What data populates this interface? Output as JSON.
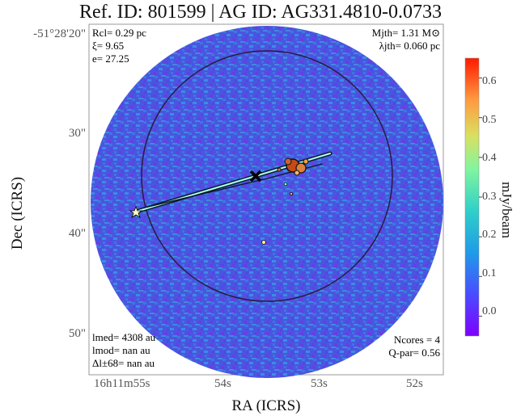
{
  "header": {
    "title": "Ref. ID: 801599 | AG ID: AG331.4810-0.0733"
  },
  "chart_data": {
    "type": "heatmap",
    "title": "Ref. ID: 801599 | AG ID: AG331.4810-0.0733",
    "xlabel": "RA (ICRS)",
    "ylabel": "Dec (ICRS)",
    "colorbar_label": "mJy/beam",
    "colormap": "rainbow",
    "colorbar_ticks": [
      "0.0",
      "0.1",
      "0.2",
      "0.3",
      "0.4",
      "0.5",
      "0.6"
    ],
    "colorbar_range": [
      -0.05,
      0.65
    ],
    "x_ticks": [
      "16h11m55s",
      "54s",
      "53s",
      "52s"
    ],
    "y_ticks": [
      "-51°28'20\"",
      "30\"",
      "40\"",
      "50\""
    ],
    "background_color": "#4a55e0",
    "circle_color": "#2a1a40",
    "markers": [
      "star",
      "cross"
    ]
  },
  "annotations": {
    "top_left": [
      "Rcl= 0.29 pc",
      "ξ= 9.65",
      "e= 27.25"
    ],
    "top_right": [
      "Mjth= 1.31 M⊙",
      "λjth= 0.060 pc"
    ],
    "bottom_left": [
      "lmed= 4308 au",
      "lmod= nan au",
      "Δl±68= nan au"
    ],
    "bottom_right": [
      "Ncores = 4",
      "Q-par= 0.56"
    ]
  }
}
